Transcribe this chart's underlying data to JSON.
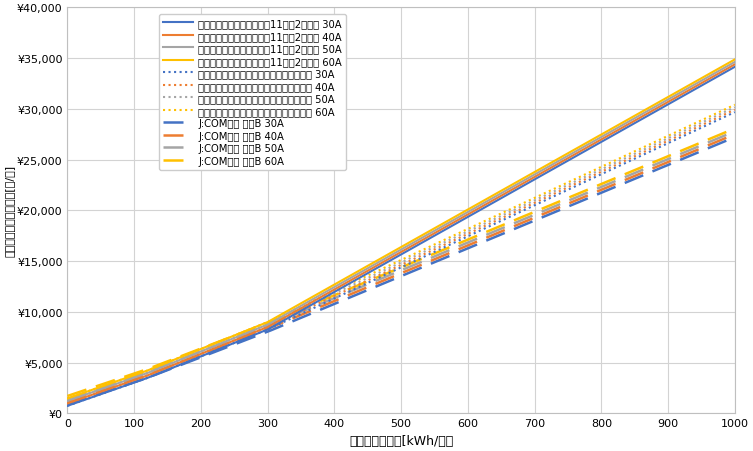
{
  "colors": {
    "30A": "#4472C4",
    "40A": "#ED7D31",
    "50A": "#A5A5A5",
    "60A": "#FFC000"
  },
  "enetoku_winter": {
    "basic": {
      "30A": 748.0,
      "40A": 990.0,
      "50A": 1232.0,
      "60A": 1474.0
    },
    "tier1_rate": 22.94,
    "tier2_rate": 26.49,
    "tier3_rate": 36.94,
    "tier1_limit": 120,
    "tier2_limit": 300
  },
  "enetoku_other": {
    "basic": {
      "30A": 748.0,
      "40A": 990.0,
      "50A": 1232.0,
      "60A": 1474.0
    },
    "tier1_rate": 22.94,
    "tier2_rate": 26.49,
    "tier3_rate": 30.57,
    "tier1_limit": 120,
    "tier2_limit": 300
  },
  "jcom": {
    "basic": {
      "30A": 858.0,
      "40A": 1144.0,
      "50A": 1430.0,
      "60A": 1716.0
    },
    "tier1_rate": 22.1,
    "tier2_rate": 25.2,
    "tier3_rate": 27.37,
    "tier1_limit": 120,
    "tier2_limit": 300
  },
  "xmax": 1000,
  "ylim": [
    0,
    40000
  ],
  "ytick_interval": 5000,
  "background": "#FFFFFF",
  "grid_color": "#D3D3D3",
  "legend_labels_winter": [
    "エネとくシーズンプラン（11月～2月）　 30A",
    "エネとくシーズンプラン（11月～2月）　 40A",
    "エネとくシーズンプラン（11月～2月）　 50A",
    "エネとくシーズンプラン（11月～2月）　 60A"
  ],
  "legend_labels_other": [
    "エネとくシーズンプラン　（左記以外）　 30A",
    "エネとくシーズンプラン　（左記以外）　 40A",
    "エネとくシーズンプラン　（左記以外）　 50A",
    "エネとくシーズンプラン　（左記以外）　 60A"
  ],
  "legend_labels_jcom": [
    "J:COM電力 従量B 30A",
    "J:COM電力 従量B 40A",
    "J:COM電力 従量B 50A",
    "J:COM電力 従量B 60A"
  ],
  "xlabel": "月間電力使用量[kWh/月］",
  "ylabel": "月額電気料金（税込）[円/月]"
}
